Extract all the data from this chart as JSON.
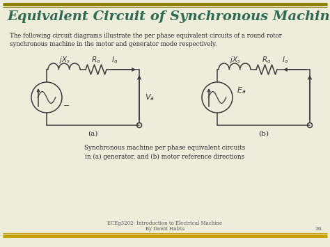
{
  "title": "Equivalent Circuit of Synchronous Machine",
  "title_color": "#2E6B4F",
  "subtitle": "The following circuit diagrams illustrate the per phase equivalent circuits of a round rotor\nsynchronous machine in the motor and generator mode respectively.",
  "caption": "Synchronous machine per phase equivalent circuits\nin (a) generator, and (b) motor reference directions",
  "footer1": "ECEg3202- Introduction to Electrical Machine",
  "footer2": "By Dawit Habtu",
  "page_number": "26",
  "border_color_top": "#8B8000",
  "border_color_bottom": "#C8A000",
  "background_color": "#EEECDA"
}
